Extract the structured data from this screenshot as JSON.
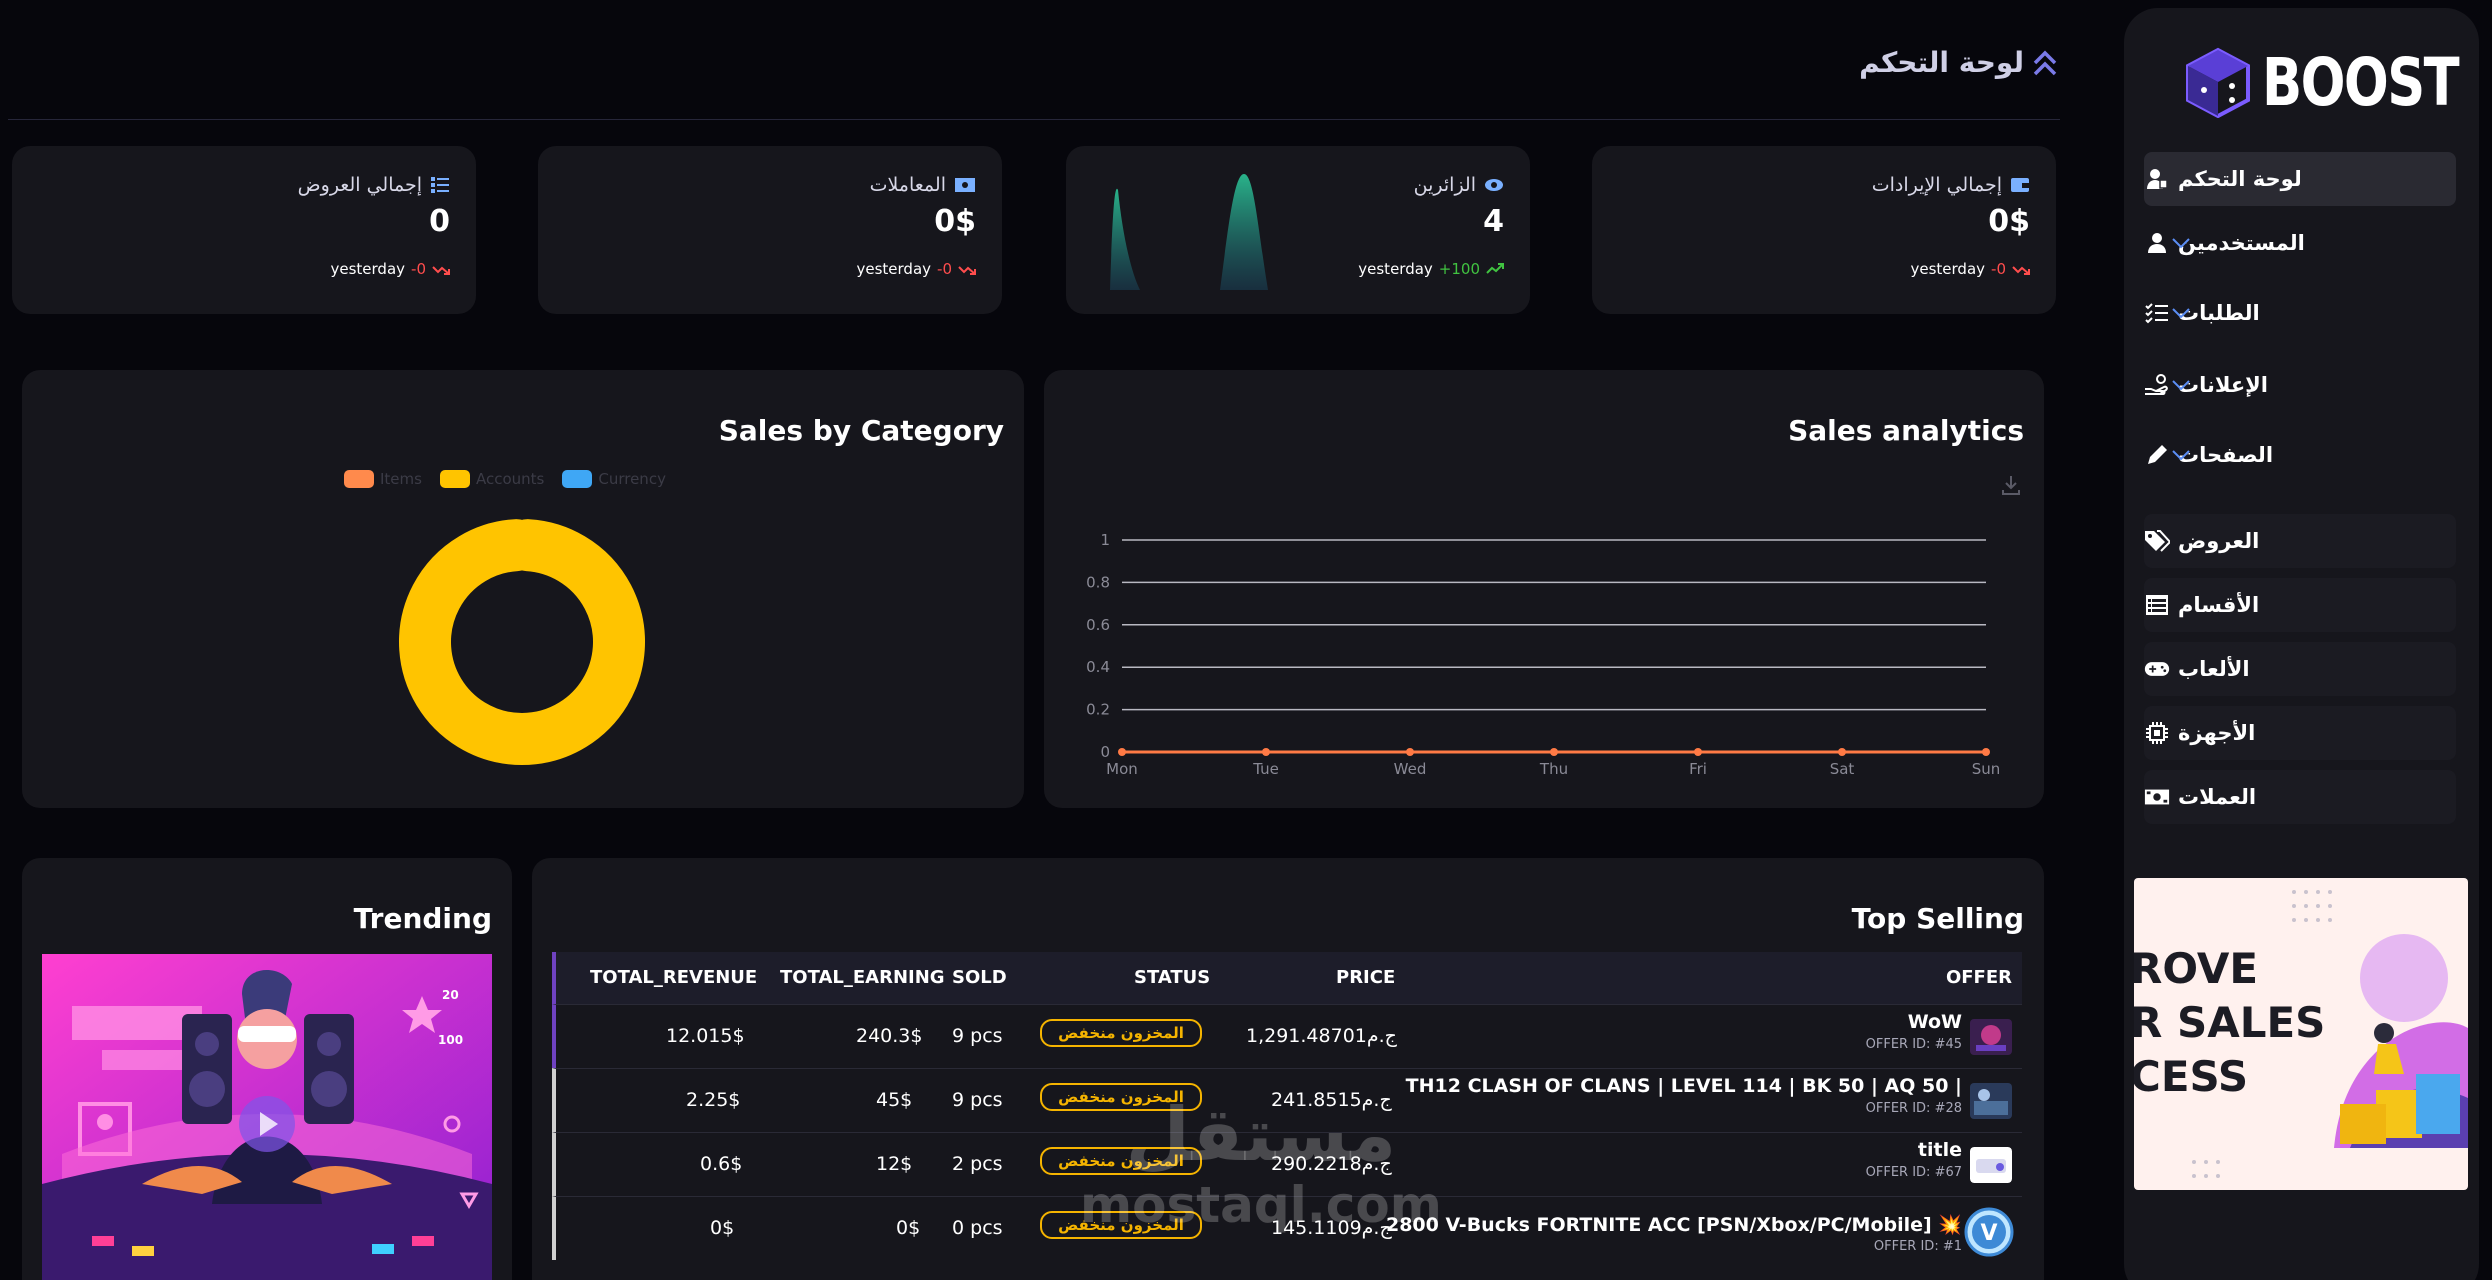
{
  "brand": {
    "name": "BOOST"
  },
  "sidebar": {
    "items": [
      {
        "label": "لوحة التحكم",
        "icon": "user-dashboard-icon",
        "active": true
      },
      {
        "label": "المستخدمين",
        "icon": "user-icon",
        "expandable": true
      },
      {
        "label": "الطلبات",
        "icon": "checklist-icon",
        "expandable": true
      },
      {
        "label": "الإعلانات",
        "icon": "hand-coin-icon",
        "expandable": true
      },
      {
        "label": "الصفحات",
        "icon": "pencil-icon",
        "expandable": true
      },
      {
        "label": "العروض",
        "icon": "tags-icon"
      },
      {
        "label": "الأقسام",
        "icon": "table-icon"
      },
      {
        "label": "الألعاب",
        "icon": "gamepad-icon"
      },
      {
        "label": "الأجهزة",
        "icon": "chip-icon"
      },
      {
        "label": "العملات",
        "icon": "money-icon"
      }
    ],
    "promo": {
      "line1": "ROVE",
      "line2": "R SALES",
      "line3": "CESS"
    }
  },
  "header": {
    "title": "لوحة التحكم"
  },
  "stats": [
    {
      "title": "إجمالي الإيرادات",
      "icon": "wallet-icon",
      "value": "0$",
      "change": "-0",
      "period": "yesterday",
      "trend": "down"
    },
    {
      "title": "الزائرين",
      "icon": "eye-icon",
      "value": "4",
      "change": "+100",
      "period": "yesterday",
      "trend": "up"
    },
    {
      "title": "المعاملات",
      "icon": "money-icon",
      "value": "0$",
      "change": "-0",
      "period": "yesterday",
      "trend": "down"
    },
    {
      "title": "إجمالي العروض",
      "icon": "list-icon",
      "value": "0",
      "change": "-0",
      "period": "yesterday",
      "trend": "down"
    }
  ],
  "sales_by_category": {
    "title": "Sales by Category",
    "legend": [
      {
        "name": "Items",
        "color": "#ff8a4c"
      },
      {
        "name": "Accounts",
        "color": "#ffc400"
      },
      {
        "name": "Currency",
        "color": "#3fa7f5"
      }
    ]
  },
  "sales_analytics": {
    "title": "Sales analytics"
  },
  "chart_data": [
    {
      "type": "line",
      "title": "Sales analytics",
      "x": [
        "Mon",
        "Tue",
        "Wed",
        "Thu",
        "Fri",
        "Sat",
        "Sun"
      ],
      "series": [
        {
          "values": [
            0,
            0,
            0,
            0,
            0,
            0,
            0
          ],
          "color": "#ff7a45"
        }
      ],
      "yticks": [
        "0",
        "0.2",
        "0.4",
        "0.6",
        "0.8",
        "1"
      ],
      "ylim": [
        0,
        1
      ],
      "grid": true
    },
    {
      "type": "pie",
      "title": "Sales by Category",
      "categories": [
        "Items",
        "Accounts",
        "Currency"
      ],
      "values": [
        0,
        100,
        0
      ],
      "legend": "top"
    }
  ],
  "trending": {
    "title": "Trending"
  },
  "top_selling": {
    "title": "Top Selling",
    "columns": [
      "OFFER",
      "PRICE",
      "STATUS",
      "SOLD",
      "TOTAL_EARNING",
      "TOTAL_REVENUE"
    ],
    "rows": [
      {
        "offer": "WoW",
        "offer_id": "OFFER ID: #45",
        "price": "1,291.48701ج.م",
        "status": "المخزون منخفض",
        "sold": "9 pcs",
        "earning": "240.3$",
        "revenue": "12.015$"
      },
      {
        "offer": "TH12 CLASH OF CLANS | LEVEL 114 | BK 50 | AQ 50 |",
        "offer_id": "OFFER ID: #28",
        "price": "241.8515ج.م",
        "status": "المخزون منخفض",
        "sold": "9 pcs",
        "earning": "45$",
        "revenue": "2.25$"
      },
      {
        "offer": "title",
        "offer_id": "OFFER ID: #67",
        "price": "290.2218ج.م",
        "status": "المخزون منخفض",
        "sold": "2 pcs",
        "earning": "12$",
        "revenue": "0.6$"
      },
      {
        "offer": "2800 V-Bucks FORTNITE ACC [PSN/Xbox/PC/Mobile] 💥",
        "offer_id": "OFFER ID: #1",
        "price": "145.1109ج.م",
        "status": "المخزون منخفض",
        "sold": "0 pcs",
        "earning": "0$",
        "revenue": "0$"
      }
    ]
  },
  "watermark": {
    "line1": "مستقل",
    "line2": "mostaql.com"
  }
}
